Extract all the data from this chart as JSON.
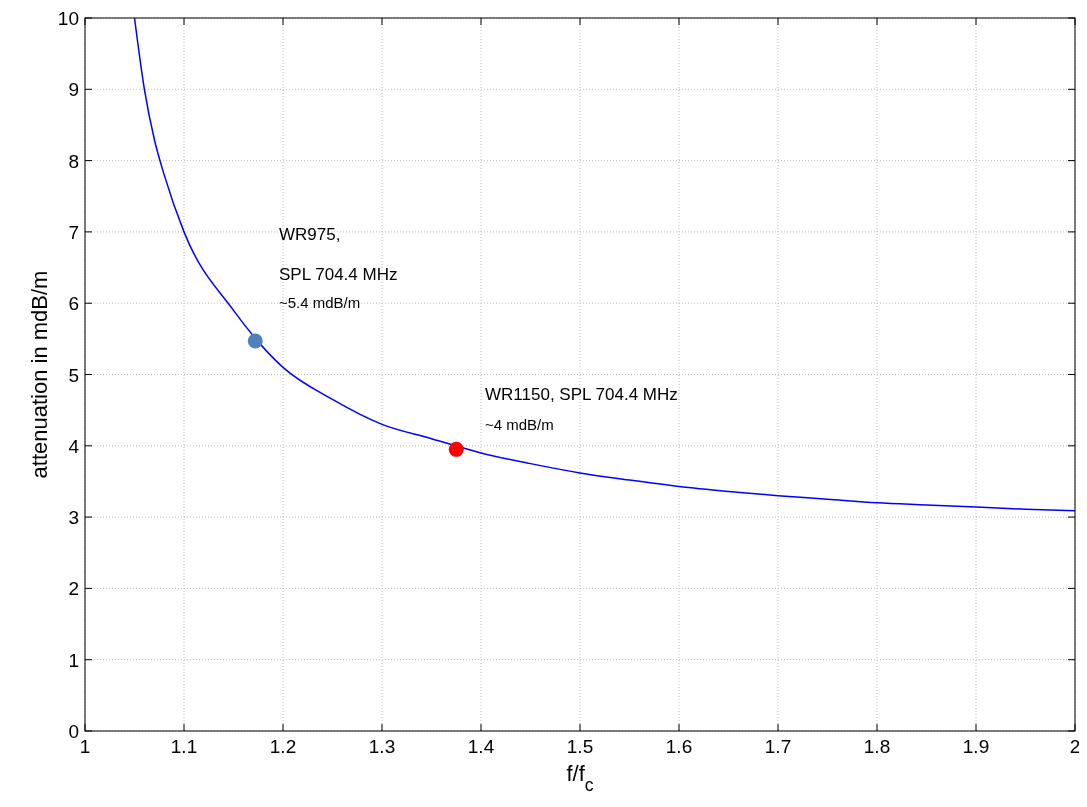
{
  "chart_data": {
    "type": "line",
    "xlabel": "f/f$_{c}$",
    "ylabel": "attenuation in mdB/m",
    "xlim": [
      1,
      2
    ],
    "ylim": [
      0,
      10
    ],
    "xticks": [
      1,
      1.1,
      1.2,
      1.3,
      1.4,
      1.5,
      1.6,
      1.7,
      1.8,
      1.9,
      2
    ],
    "yticks": [
      0,
      1,
      2,
      3,
      4,
      5,
      6,
      7,
      8,
      9,
      10
    ],
    "grid": true,
    "marker": "none",
    "series": [
      {
        "color": "#0000ff",
        "x": [
          1.05,
          1.06,
          1.07,
          1.08,
          1.1,
          1.15,
          1.2,
          1.25,
          1.3,
          1.35,
          1.4,
          1.45,
          1.5,
          1.55,
          1.6,
          1.65,
          1.7,
          1.75,
          1.8,
          1.85,
          1.9,
          1.95,
          2
        ],
        "values": [
          10,
          9.0,
          8.3,
          7.8,
          7.0,
          5.9,
          5.1,
          4.65,
          4.3,
          4.1,
          3.9,
          3.75,
          3.62,
          3.52,
          3.43,
          3.36,
          3.3,
          3.25,
          3.2,
          3.17,
          3.14,
          3.11,
          3.09
        ]
      },
      {
        "type": "scatter",
        "color": "#4f81bd",
        "marker": "circle",
        "x": [
          1.172
        ],
        "values": [
          5.47
        ]
      },
      {
        "type": "scatter",
        "color": "#ff0000",
        "marker": "circle",
        "x": [
          1.375
        ],
        "values": [
          3.95
        ]
      }
    ],
    "annotations": [
      "WR975,",
      "SPL 704.4 MHz",
      "~5.4 mdB/m",
      "WR1150, SPL 704.4 MHz",
      "~4 mdB/m"
    ]
  }
}
